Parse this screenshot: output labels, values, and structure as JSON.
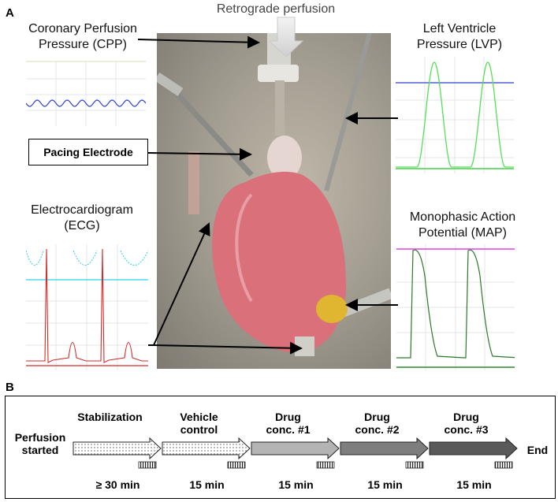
{
  "panelA": {
    "letter": "A",
    "retrograde_label": "Retrograde perfusion",
    "cpp_line1": "Coronary Perfusion",
    "cpp_line2": "Pressure (CPP)",
    "lvp_line1": "Left Ventricle",
    "lvp_line2": "Pressure (LVP)",
    "pacing_label": "Pacing Electrode",
    "ecg_line1": "Electrocardiogram",
    "ecg_line2": "(ECG)",
    "map_line1": "Monophasic Action",
    "map_line2": "Potential (MAP)",
    "colors": {
      "cpp_trace": "#2b3fd6",
      "lvp_trace": "#55e055",
      "lvp_baseline": "#2a3fcf",
      "ecg_trace": "#d42a2a",
      "ecg_aux": "#2fd0e6",
      "map_trace": "#2a7a2a",
      "map_top": "#e040e0",
      "heart": "#d9707a"
    }
  },
  "panelB": {
    "letter": "B",
    "start_line1": "Perfusion",
    "start_line2": "started",
    "end_label": "End",
    "stages": [
      {
        "line1": "Stabilization",
        "line2": "",
        "duration": "≥ 30 min",
        "fill": "dotted"
      },
      {
        "line1": "Vehicle",
        "line2": "control",
        "duration": "15 min",
        "fill": "dotted"
      },
      {
        "line1": "Drug",
        "line2": "conc. #1",
        "duration": "15 min",
        "fill": "#b4b4b4"
      },
      {
        "line1": "Drug",
        "line2": "conc. #2",
        "duration": "15 min",
        "fill": "#7e7e7e"
      },
      {
        "line1": "Drug",
        "line2": "conc. #3",
        "duration": "15 min",
        "fill": "#5a5a5a"
      }
    ]
  }
}
